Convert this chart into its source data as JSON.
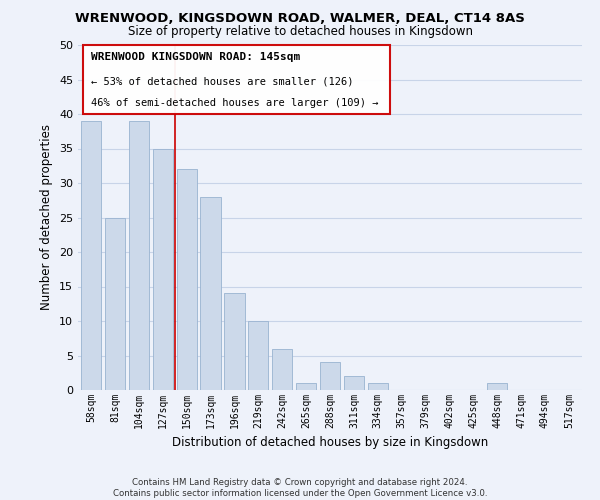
{
  "title": "WRENWOOD, KINGSDOWN ROAD, WALMER, DEAL, CT14 8AS",
  "subtitle": "Size of property relative to detached houses in Kingsdown",
  "xlabel": "Distribution of detached houses by size in Kingsdown",
  "ylabel": "Number of detached properties",
  "bar_color": "#ccd9ea",
  "bar_edge_color": "#99b3d0",
  "categories": [
    "58sqm",
    "81sqm",
    "104sqm",
    "127sqm",
    "150sqm",
    "173sqm",
    "196sqm",
    "219sqm",
    "242sqm",
    "265sqm",
    "288sqm",
    "311sqm",
    "334sqm",
    "357sqm",
    "379sqm",
    "402sqm",
    "425sqm",
    "448sqm",
    "471sqm",
    "494sqm",
    "517sqm"
  ],
  "values": [
    39,
    25,
    39,
    35,
    32,
    28,
    14,
    10,
    6,
    1,
    4,
    2,
    1,
    0,
    0,
    0,
    0,
    1,
    0,
    0,
    0
  ],
  "ylim": [
    0,
    50
  ],
  "yticks": [
    0,
    5,
    10,
    15,
    20,
    25,
    30,
    35,
    40,
    45,
    50
  ],
  "vline_x": 3.5,
  "vline_color": "#cc0000",
  "annotation_title": "WRENWOOD KINGSDOWN ROAD: 145sqm",
  "annotation_line1": "← 53% of detached houses are smaller (126)",
  "annotation_line2": "46% of semi-detached houses are larger (109) →",
  "footer1": "Contains HM Land Registry data © Crown copyright and database right 2024.",
  "footer2": "Contains public sector information licensed under the Open Government Licence v3.0.",
  "grid_color": "#c8d4e8",
  "background_color": "#eef2fa"
}
